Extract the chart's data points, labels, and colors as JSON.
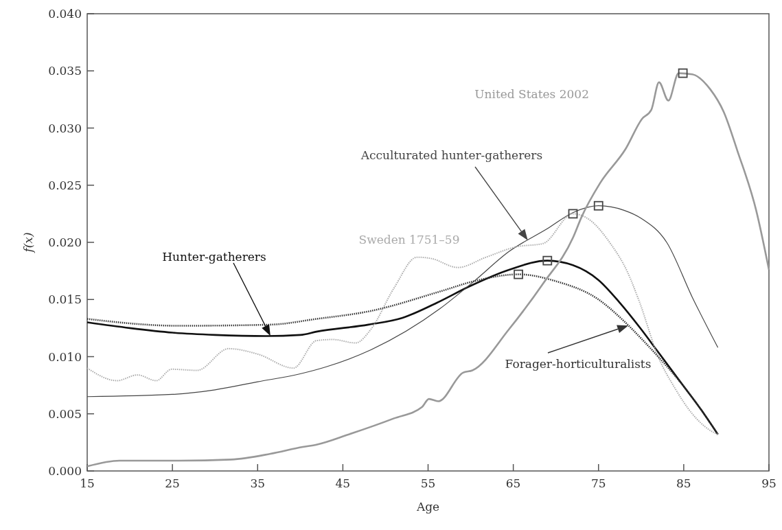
{
  "chart_data": {
    "type": "line",
    "xlabel": "Age",
    "ylabel": "f(x)",
    "xlim": [
      15,
      95
    ],
    "ylim": [
      0,
      0.04
    ],
    "xticks": [
      15,
      25,
      35,
      45,
      55,
      65,
      75,
      85,
      95
    ],
    "yticks": [
      {
        "value": 0,
        "label": "0.000"
      },
      {
        "value": 0.005,
        "label": "0.005"
      },
      {
        "value": 0.01,
        "label": "0.010"
      },
      {
        "value": 0.015,
        "label": "0.015"
      },
      {
        "value": 0.02,
        "label": "0.020"
      },
      {
        "value": 0.025,
        "label": "0.025"
      },
      {
        "value": 0.03,
        "label": "0.030"
      },
      {
        "value": 0.035,
        "label": "0.035"
      },
      {
        "value": 0.04,
        "label": "0.040"
      }
    ],
    "grid": false,
    "series": [
      {
        "name": "Hunter-gatherers",
        "color": "#111111",
        "line_style": "solid",
        "x": [
          15,
          20,
          25,
          30,
          36,
          40,
          42,
          48,
          52,
          56,
          60,
          64.5,
          69,
          72,
          75,
          77.4,
          80,
          82,
          85,
          87,
          89
        ],
        "values": [
          0.013,
          0.0125,
          0.0121,
          0.0119,
          0.0118,
          0.0119,
          0.0122,
          0.0128,
          0.0134,
          0.0147,
          0.0162,
          0.0176,
          0.0184,
          0.018,
          0.0167,
          0.0148,
          0.0124,
          0.0104,
          0.0074,
          0.0054,
          0.0032
        ]
      },
      {
        "name": "Forager-horticulturalists",
        "color": "#333333",
        "line_style": "dotted",
        "x": [
          15,
          25.75,
          36.5,
          41.9,
          48.3,
          56.4,
          60.4,
          65.6,
          70,
          75,
          78,
          80,
          82,
          85,
          87,
          89
        ],
        "values": [
          0.0133,
          0.0127,
          0.0128,
          0.0133,
          0.014,
          0.0157,
          0.0166,
          0.0172,
          0.0166,
          0.015,
          0.0131,
          0.0116,
          0.01,
          0.0074,
          0.0054,
          0.0032
        ]
      },
      {
        "name": "Acculturated hunter-gatherers",
        "color": "#444444",
        "line_style": "solid",
        "x": [
          15,
          25,
          30,
          35,
          40,
          43,
          48.3,
          56.4,
          60.4,
          64.5,
          69,
          72,
          75,
          78,
          80,
          83,
          86,
          89
        ],
        "values": [
          0.0065,
          0.0067,
          0.0071,
          0.0078,
          0.0085,
          0.0091,
          0.0106,
          0.0142,
          0.0166,
          0.0192,
          0.0212,
          0.0226,
          0.0232,
          0.0228,
          0.0221,
          0.02,
          0.0152,
          0.0108
        ]
      },
      {
        "name": "Sweden 1751–59",
        "color": "#aaaaaa",
        "line_style": "dotted",
        "x": [
          15,
          18.5,
          20.9,
          23.1,
          24.9,
          27.9,
          31.6,
          35.1,
          39.2,
          41.9,
          43.8,
          46.5,
          48.3,
          51,
          53.7,
          55.3,
          58.5,
          61.8,
          65.3,
          68.5,
          72,
          73.9,
          76.3,
          78.4,
          79.8,
          82,
          84,
          86,
          88,
          89
        ],
        "values": [
          0.009,
          0.0079,
          0.0084,
          0.0079,
          0.0089,
          0.0088,
          0.0107,
          0.0102,
          0.009,
          0.0114,
          0.0115,
          0.0112,
          0.0124,
          0.016,
          0.0187,
          0.0186,
          0.0178,
          0.0187,
          0.0196,
          0.0199,
          0.0225,
          0.022,
          0.02,
          0.0174,
          0.0148,
          0.01,
          0.0072,
          0.005,
          0.0036,
          0.0032
        ]
      },
      {
        "name": "United States 2002",
        "color": "#999999",
        "line_style": "solid",
        "x": [
          15,
          18.8,
          25.75,
          31.9,
          36.5,
          40.3,
          41.9,
          45.7,
          51,
          54.3,
          55.1,
          56.2,
          59.1,
          60.2,
          64.5,
          68.5,
          72,
          73,
          75.2,
          78.2,
          80.1,
          81.2,
          82.1,
          83.2,
          84.4,
          86,
          88.1,
          89.7,
          91.3,
          93.5,
          95
        ],
        "values": [
          0.0004,
          0.0009,
          0.0009,
          0.001,
          0.0015,
          0.0021,
          0.0023,
          0.0032,
          0.0046,
          0.0056,
          0.0063,
          0.0061,
          0.0086,
          0.0088,
          0.0124,
          0.0164,
          0.0204,
          0.0222,
          0.0252,
          0.0282,
          0.0308,
          0.0316,
          0.034,
          0.0324,
          0.0348,
          0.0347,
          0.0334,
          0.0314,
          0.028,
          0.0228,
          0.0176
        ]
      },
      {
        "type": "scatter",
        "color": "#444444",
        "marker": "square",
        "x": [
          69,
          65.6,
          75,
          72,
          84.9
        ],
        "values": [
          0.0184,
          0.0172,
          0.0232,
          0.0225,
          0.0348
        ]
      }
    ]
  }
}
